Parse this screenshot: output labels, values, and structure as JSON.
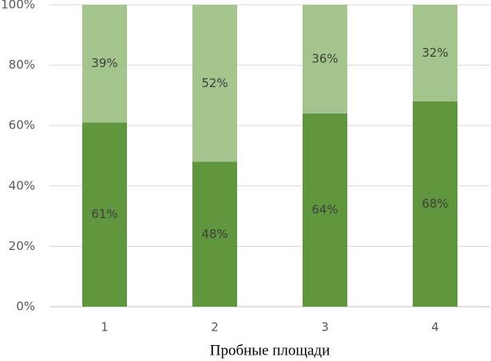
{
  "chart_data": {
    "type": "stacked_bar",
    "x_label": "Пробные площади",
    "categories": [
      "1",
      "2",
      "3",
      "4"
    ],
    "series": [
      {
        "color": "#5f963e",
        "values": [
          61,
          48,
          64,
          68
        ],
        "value_labels": [
          "61%",
          "48%",
          "64%",
          "68%"
        ]
      },
      {
        "color": "#a3c48c",
        "values": [
          39,
          52,
          36,
          32
        ],
        "value_labels": [
          "39%",
          "52%",
          "36%",
          "32%"
        ]
      }
    ],
    "ylim": [
      0,
      100
    ],
    "yticks": [
      {
        "value": 0,
        "label": "0%"
      },
      {
        "value": 20,
        "label": "20%"
      },
      {
        "value": 40,
        "label": "40%"
      },
      {
        "value": 60,
        "label": "60%"
      },
      {
        "value": 80,
        "label": "80%"
      },
      {
        "value": 100,
        "label": "100%"
      }
    ],
    "grid": true
  }
}
